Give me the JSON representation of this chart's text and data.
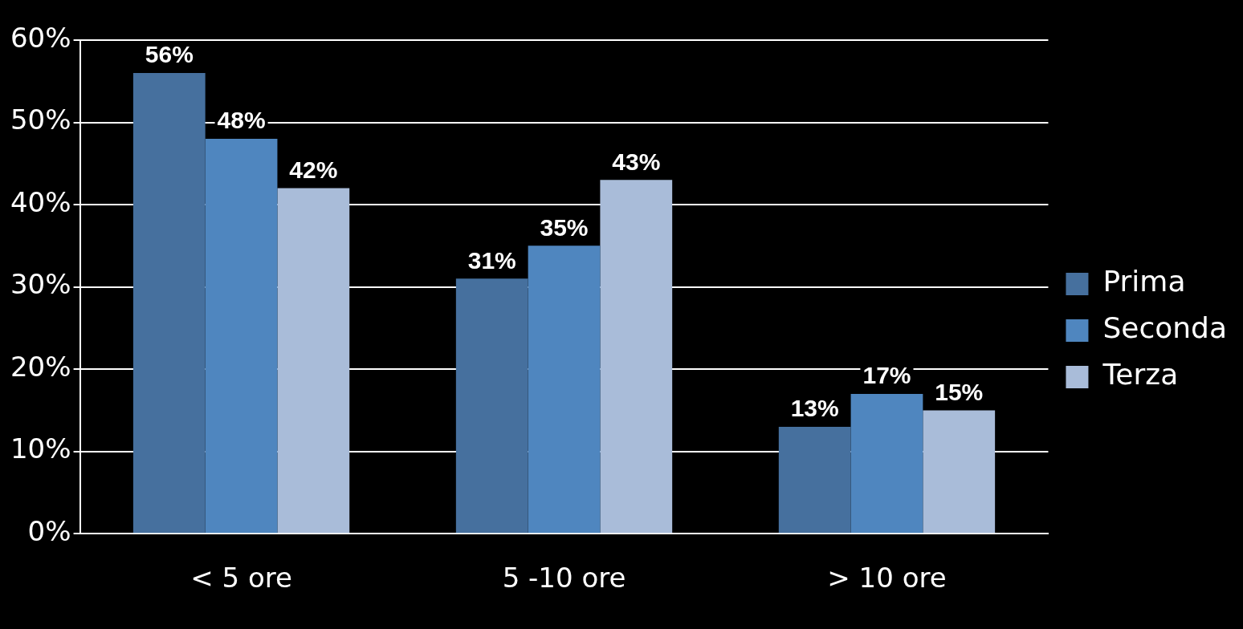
{
  "chart_data": {
    "type": "bar",
    "categories": [
      "< 5 ore",
      "5 -10 ore",
      "> 10 ore"
    ],
    "series": [
      {
        "name": "Prima",
        "color": "#46709e",
        "values": [
          56,
          31,
          13
        ],
        "value_labels": [
          "56%",
          "31%",
          "13%"
        ]
      },
      {
        "name": "Seconda",
        "color": "#4f86bf",
        "values": [
          48,
          35,
          17
        ],
        "value_labels": [
          "48%",
          "35%",
          "17%"
        ]
      },
      {
        "name": "Terza",
        "color": "#a9bcd9",
        "values": [
          42,
          43,
          15
        ],
        "value_labels": [
          "42%",
          "43%",
          "15%"
        ]
      }
    ],
    "ylim": [
      0,
      60
    ],
    "yticks": [
      {
        "value": 0,
        "label": "0%"
      },
      {
        "value": 10,
        "label": "10%"
      },
      {
        "value": 20,
        "label": "20%"
      },
      {
        "value": 30,
        "label": "30%"
      },
      {
        "value": 40,
        "label": "40%"
      },
      {
        "value": 50,
        "label": "50%"
      },
      {
        "value": 60,
        "label": "60%"
      }
    ],
    "grid": "y",
    "legend": "right"
  }
}
